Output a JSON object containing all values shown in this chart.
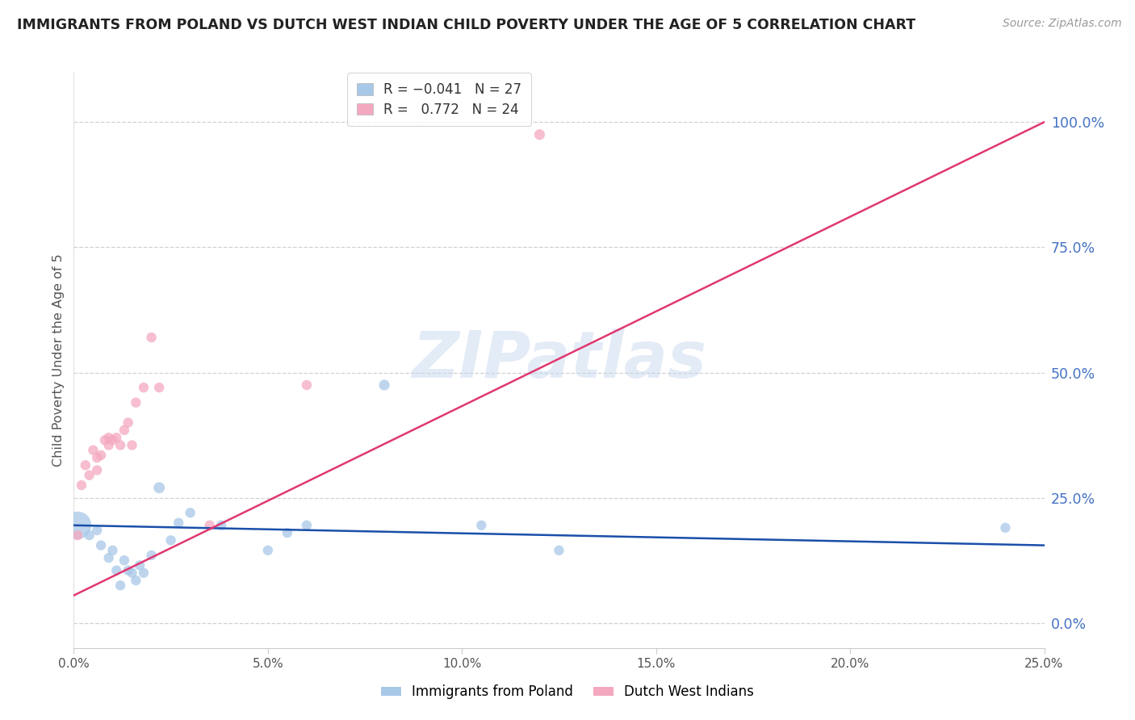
{
  "title": "IMMIGRANTS FROM POLAND VS DUTCH WEST INDIAN CHILD POVERTY UNDER THE AGE OF 5 CORRELATION CHART",
  "source": "Source: ZipAtlas.com",
  "ylabel": "Child Poverty Under the Age of 5",
  "xlim": [
    0.0,
    0.25
  ],
  "ylim": [
    -0.05,
    1.1
  ],
  "xticks": [
    0.0,
    0.05,
    0.1,
    0.15,
    0.2,
    0.25
  ],
  "yticks_right": [
    0.0,
    0.25,
    0.5,
    0.75,
    1.0
  ],
  "ytick_labels_right": [
    "0.0%",
    "25.0%",
    "50.0%",
    "75.0%",
    "100.0%"
  ],
  "blue_color": "#a8c8e8",
  "pink_color": "#f4a8c0",
  "blue_line_color": "#1a4faa",
  "pink_line_color": "#e03870",
  "watermark": "ZIPatlas",
  "blue_x": [
    0.001,
    0.004,
    0.006,
    0.007,
    0.009,
    0.01,
    0.011,
    0.012,
    0.013,
    0.014,
    0.015,
    0.016,
    0.017,
    0.018,
    0.02,
    0.022,
    0.025,
    0.027,
    0.03,
    0.038,
    0.05,
    0.055,
    0.06,
    0.08,
    0.105,
    0.125,
    0.24
  ],
  "blue_y": [
    0.195,
    0.175,
    0.185,
    0.155,
    0.13,
    0.145,
    0.105,
    0.075,
    0.125,
    0.105,
    0.1,
    0.085,
    0.115,
    0.1,
    0.135,
    0.27,
    0.165,
    0.2,
    0.22,
    0.195,
    0.145,
    0.18,
    0.195,
    0.475,
    0.195,
    0.145,
    0.19
  ],
  "blue_size": [
    600,
    80,
    80,
    80,
    80,
    80,
    80,
    80,
    80,
    80,
    80,
    80,
    80,
    80,
    80,
    100,
    80,
    80,
    80,
    80,
    80,
    80,
    80,
    90,
    80,
    80,
    80
  ],
  "pink_x": [
    0.001,
    0.002,
    0.003,
    0.004,
    0.005,
    0.006,
    0.006,
    0.007,
    0.008,
    0.009,
    0.009,
    0.01,
    0.011,
    0.012,
    0.013,
    0.014,
    0.015,
    0.016,
    0.018,
    0.02,
    0.022,
    0.035,
    0.06,
    0.12
  ],
  "pink_y": [
    0.175,
    0.275,
    0.315,
    0.295,
    0.345,
    0.33,
    0.305,
    0.335,
    0.365,
    0.355,
    0.37,
    0.365,
    0.37,
    0.355,
    0.385,
    0.4,
    0.355,
    0.44,
    0.47,
    0.57,
    0.47,
    0.195,
    0.475,
    0.975
  ],
  "pink_size": [
    80,
    80,
    80,
    80,
    80,
    80,
    80,
    80,
    80,
    80,
    80,
    80,
    80,
    80,
    80,
    80,
    80,
    80,
    80,
    80,
    80,
    80,
    80,
    90
  ],
  "blue_trend_x": [
    0.0,
    0.25
  ],
  "blue_trend_y": [
    0.195,
    0.155
  ],
  "pink_trend_x": [
    0.0,
    0.25
  ],
  "pink_trend_y": [
    0.055,
    1.0
  ]
}
